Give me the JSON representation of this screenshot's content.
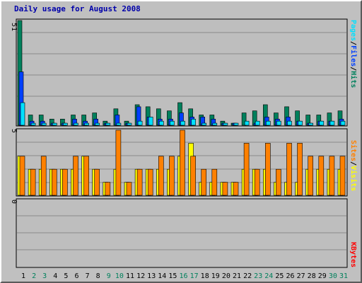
{
  "title": "Daily usage for August 2008",
  "colors": {
    "hits": "#00805c",
    "files": "#0040ff",
    "pages": "#00e0ff",
    "visits": "#ffff00",
    "sites": "#ff8000",
    "kbytes": "#ff0000",
    "panel_bg": "#bebebe",
    "grid": "#8a8a8a",
    "weekend_label": "#00805c",
    "weekday_label": "#000000"
  },
  "chart_data": [
    {
      "type": "bar",
      "title": "Daily usage for August 2008",
      "ymax_label": "51",
      "ylim": [
        0,
        51
      ],
      "legend": [
        "Pages",
        "Files",
        "Hits"
      ],
      "categories": [
        "1",
        "2",
        "3",
        "4",
        "5",
        "6",
        "7",
        "8",
        "9",
        "10",
        "11",
        "12",
        "13",
        "14",
        "15",
        "16",
        "17",
        "18",
        "19",
        "20",
        "21",
        "22",
        "23",
        "24",
        "25",
        "26",
        "27",
        "28",
        "29",
        "30",
        "31"
      ],
      "weekend_days": [
        "2",
        "3",
        "9",
        "10",
        "16",
        "17",
        "23",
        "24",
        "30",
        "31"
      ],
      "series": [
        {
          "name": "Hits",
          "values": [
            51,
            5,
            5,
            3,
            3,
            5,
            5,
            6,
            2,
            8,
            2,
            10,
            9,
            8,
            7,
            11,
            8,
            5,
            5,
            2,
            1,
            6,
            7,
            10,
            6,
            9,
            7,
            5,
            5,
            6,
            7
          ]
        },
        {
          "name": "Files",
          "values": [
            26,
            2,
            2,
            1,
            1,
            3,
            2,
            3,
            1,
            5,
            1,
            9,
            4,
            3,
            3,
            6,
            4,
            4,
            3,
            1,
            1,
            0,
            1,
            4,
            3,
            4,
            2,
            1,
            2,
            2,
            3
          ]
        },
        {
          "name": "Pages",
          "values": [
            11,
            1,
            1,
            1,
            1,
            1,
            1,
            1,
            1,
            1,
            1,
            2,
            4,
            2,
            2,
            2,
            3,
            1,
            1,
            1,
            1,
            2,
            2,
            2,
            2,
            2,
            2,
            1,
            2,
            2,
            2
          ]
        }
      ]
    },
    {
      "type": "bar",
      "ymax_label": "5",
      "ylim": [
        0,
        5
      ],
      "legend": [
        "Sites",
        "Visits"
      ],
      "categories": [
        "1",
        "2",
        "3",
        "4",
        "5",
        "6",
        "7",
        "8",
        "9",
        "10",
        "11",
        "12",
        "13",
        "14",
        "15",
        "16",
        "17",
        "18",
        "19",
        "20",
        "21",
        "22",
        "23",
        "24",
        "25",
        "26",
        "27",
        "28",
        "29",
        "30",
        "31"
      ],
      "series": [
        {
          "name": "Visits",
          "values": [
            3,
            2,
            2,
            2,
            2,
            2,
            3,
            2,
            1,
            2,
            1,
            2,
            2,
            2,
            2,
            3,
            4,
            1,
            1,
            1,
            1,
            2,
            2,
            2,
            1,
            1,
            1,
            2,
            2,
            2,
            2
          ]
        },
        {
          "name": "Sites",
          "values": [
            3,
            2,
            3,
            2,
            2,
            3,
            3,
            2,
            1,
            5,
            1,
            2,
            2,
            3,
            3,
            5,
            3,
            2,
            2,
            1,
            1,
            4,
            2,
            4,
            2,
            4,
            4,
            3,
            3,
            3,
            3
          ]
        }
      ]
    },
    {
      "type": "bar",
      "ymax_label": "0",
      "legend": [
        "KBytes"
      ],
      "categories": [
        "1",
        "2",
        "3",
        "4",
        "5",
        "6",
        "7",
        "8",
        "9",
        "10",
        "11",
        "12",
        "13",
        "14",
        "15",
        "16",
        "17",
        "18",
        "19",
        "20",
        "21",
        "22",
        "23",
        "24",
        "25",
        "26",
        "27",
        "28",
        "29",
        "30",
        "31"
      ],
      "series": [
        {
          "name": "KBytes",
          "values": [
            0,
            0,
            0,
            0,
            0,
            0,
            0,
            0,
            0,
            0,
            0,
            0,
            0,
            0,
            0,
            0,
            0,
            0,
            0,
            0,
            0,
            0,
            0,
            0,
            0,
            0,
            0,
            0,
            0,
            0,
            0
          ]
        }
      ]
    }
  ]
}
